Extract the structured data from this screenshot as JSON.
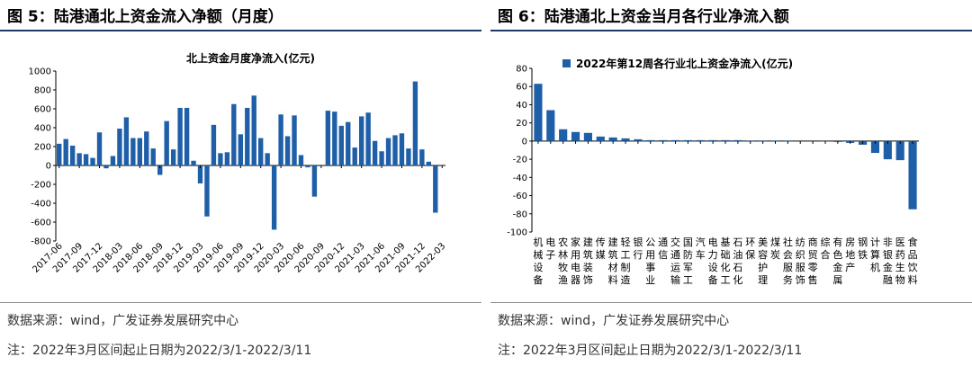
{
  "left": {
    "figure_title": "图 5：陆港通北上资金流入净额（月度）",
    "source": "数据来源：wind，广发证券发展研究中心",
    "note": "注：2022年3月区间起止日期为2022/3/1-2022/3/11",
    "chart_data": {
      "type": "bar",
      "title": "北上资金月度净流入(亿元)",
      "xlabel": "",
      "ylabel": "",
      "ylim": [
        -800,
        1000
      ],
      "yticks": [
        -800,
        -600,
        -400,
        -200,
        0,
        200,
        400,
        600,
        800,
        1000
      ],
      "grid": false,
      "color": "#1f5fa8",
      "categories": [
        "2017-06",
        "2017-07",
        "2017-08",
        "2017-09",
        "2017-10",
        "2017-11",
        "2017-12",
        "2018-01",
        "2018-02",
        "2018-03",
        "2018-04",
        "2018-05",
        "2018-06",
        "2018-07",
        "2018-08",
        "2018-09",
        "2018-10",
        "2018-11",
        "2018-12",
        "2019-01",
        "2019-02",
        "2019-03",
        "2019-04",
        "2019-05",
        "2019-06",
        "2019-07",
        "2019-08",
        "2019-09",
        "2019-10",
        "2019-11",
        "2019-12",
        "2020-01",
        "2020-02",
        "2020-03",
        "2020-04",
        "2020-05",
        "2020-06",
        "2020-07",
        "2020-08",
        "2020-09",
        "2020-10",
        "2020-11",
        "2020-12",
        "2021-01",
        "2021-02",
        "2021-03",
        "2021-04",
        "2021-05",
        "2021-06",
        "2021-07",
        "2021-08",
        "2021-09",
        "2021-10",
        "2021-11",
        "2021-12",
        "2022-01",
        "2022-02",
        "2022-03"
      ],
      "tick_labels": [
        "2017-06",
        "2017-09",
        "2017-12",
        "2018-03",
        "2018-06",
        "2018-09",
        "2018-12",
        "2019-03",
        "2019-06",
        "2019-09",
        "2019-12",
        "2020-03",
        "2020-06",
        "2020-09",
        "2020-12",
        "2021-03",
        "2021-06",
        "2021-09",
        "2021-12",
        "2022-03"
      ],
      "values": [
        230,
        280,
        210,
        130,
        120,
        80,
        350,
        -30,
        100,
        390,
        510,
        290,
        290,
        360,
        180,
        -100,
        470,
        170,
        610,
        610,
        50,
        -190,
        -540,
        430,
        130,
        140,
        650,
        330,
        610,
        740,
        290,
        130,
        -680,
        540,
        310,
        530,
        110,
        -20,
        -330,
        0,
        580,
        570,
        420,
        460,
        190,
        520,
        560,
        260,
        150,
        290,
        320,
        340,
        180,
        890,
        170,
        40,
        -500,
        0
      ]
    }
  },
  "right": {
    "figure_title": "图 6：陆港通北上资金当月各行业净流入额",
    "source": "数据来源：wind，广发证券发展研究中心",
    "note": "注：2022年3月区间起止日期为2022/3/1-2022/3/11",
    "chart_data": {
      "type": "bar",
      "title": "",
      "legend": [
        "2022年第12周各行业北上资金净流入(亿元)"
      ],
      "legend_position": "top",
      "xlabel": "",
      "ylabel": "",
      "ylim": [
        -100,
        80
      ],
      "yticks": [
        -100,
        -80,
        -60,
        -40,
        -20,
        0,
        20,
        40,
        60,
        80
      ],
      "grid": false,
      "color": "#1f5fa8",
      "categories": [
        "机械设备",
        "电子",
        "农林牧渔",
        "家用电器",
        "建筑装饰",
        "传媒",
        "建筑材料",
        "轻工制造",
        "银行",
        "公用事业",
        "通信",
        "交通运输",
        "国防军工",
        "汽车",
        "电力设备",
        "基础化工",
        "石油石化",
        "环保",
        "美容护理",
        "煤炭",
        "社会服务",
        "纺织服饰",
        "商贸零售",
        "综合",
        "有色金属",
        "房地产",
        "钢铁",
        "计算机",
        "非银金融",
        "医药生物",
        "食品饮料"
      ],
      "values": [
        63,
        34,
        13,
        10,
        9,
        5,
        4,
        3,
        2,
        1,
        1,
        1,
        1,
        1,
        1,
        1,
        1,
        0.5,
        0.5,
        0.5,
        0.5,
        0,
        0,
        -0.5,
        -1,
        -2,
        -4,
        -13,
        -20,
        -21,
        -75
      ]
    }
  }
}
